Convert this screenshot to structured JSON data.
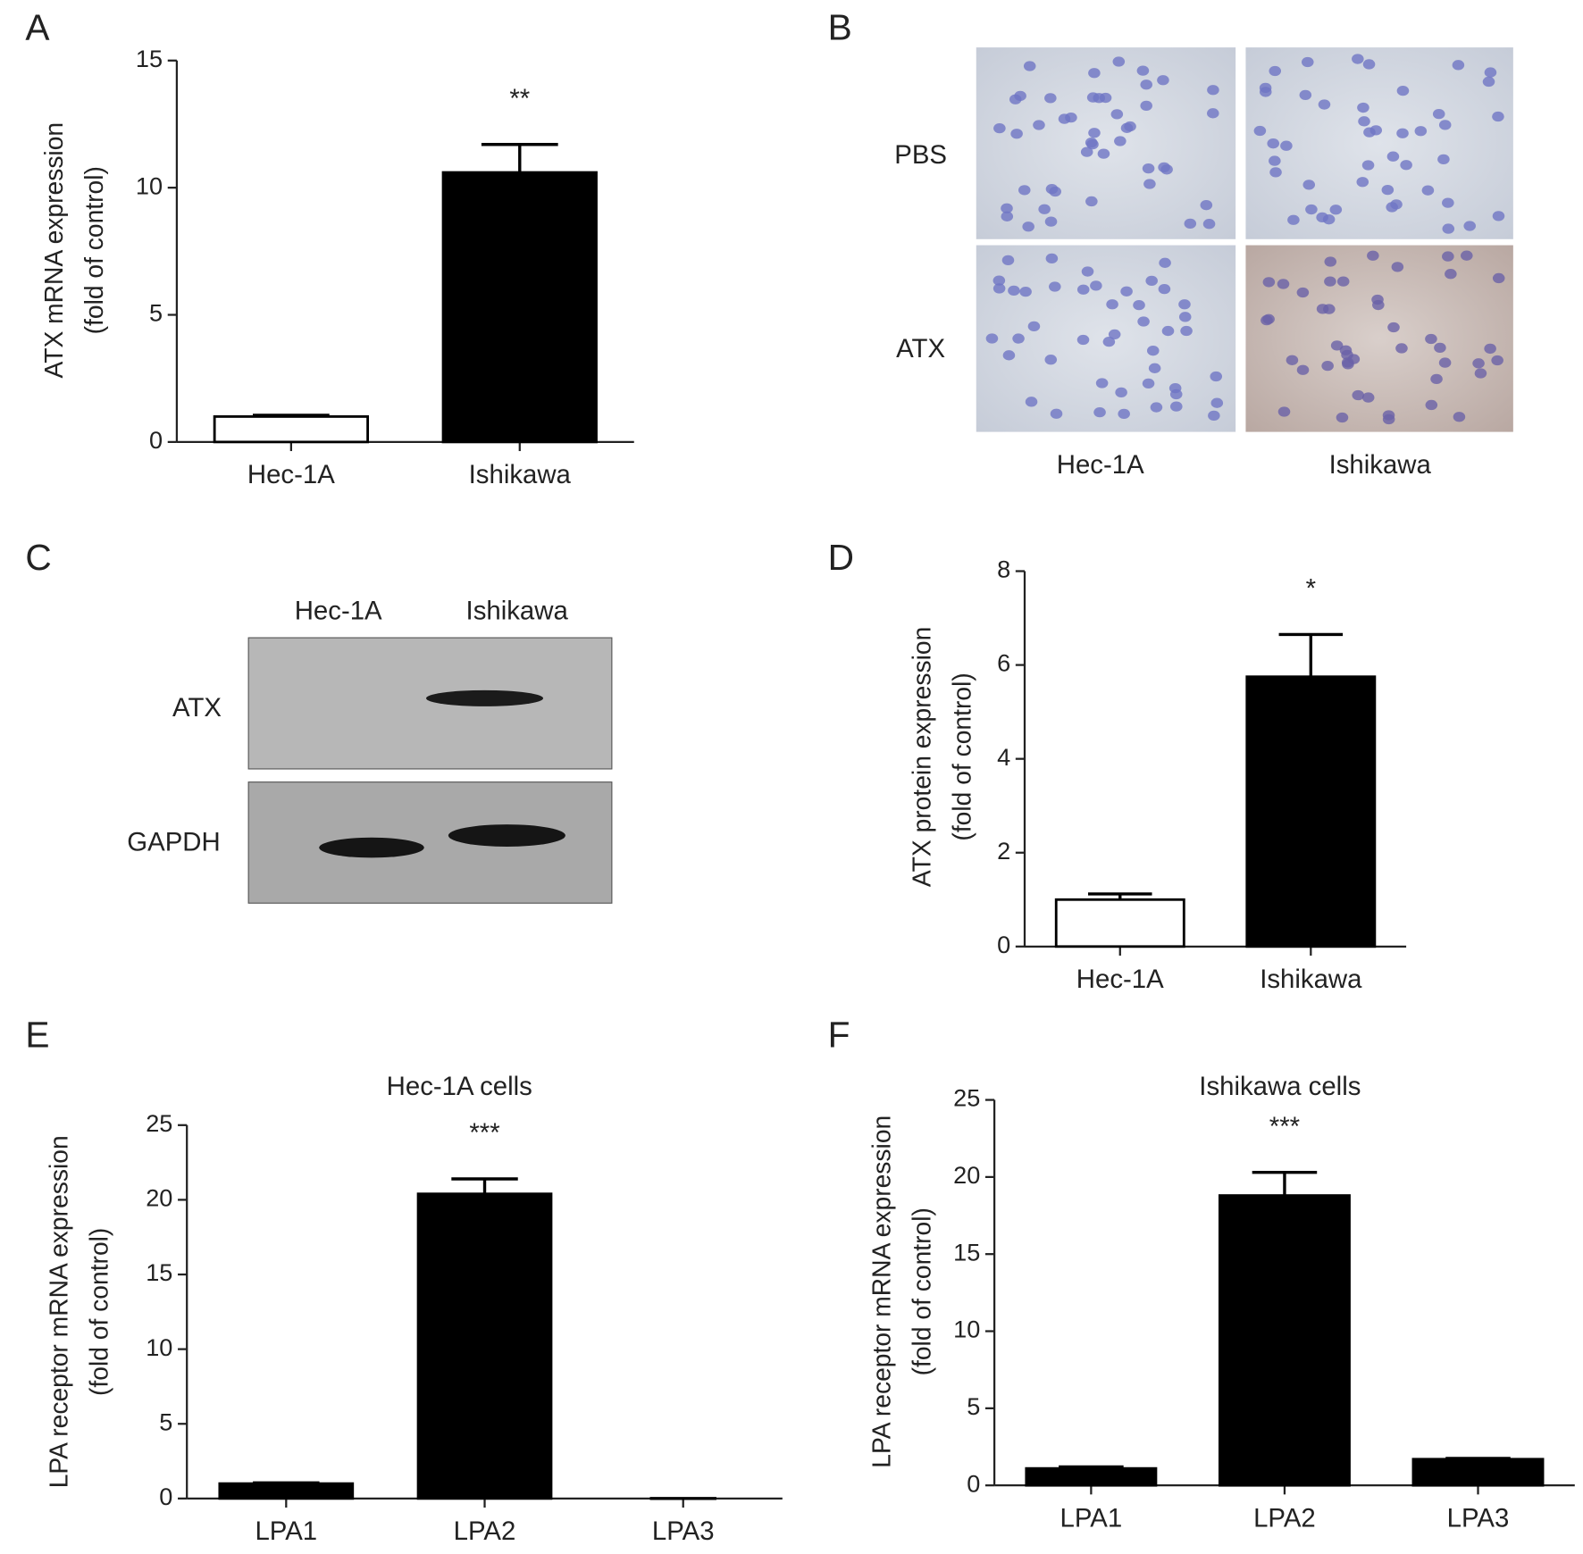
{
  "chart_data": [
    {
      "type": "bar",
      "panel": "A",
      "ylabel": [
        "ATX mRNA expression",
        "(fold of control)"
      ],
      "categories": [
        "Hec-1A",
        "Ishikawa"
      ],
      "values": [
        1.0,
        10.6
      ],
      "errors": [
        0.05,
        1.1
      ],
      "colors": [
        "#ffffff",
        "#000000"
      ],
      "significance": [
        null,
        "**"
      ],
      "ylim": [
        0,
        15
      ],
      "yticks": [
        0,
        5,
        10,
        15
      ]
    },
    {
      "type": "bar",
      "panel": "D",
      "ylabel": [
        "ATX protein expression",
        "(fold of control)"
      ],
      "categories": [
        "Hec-1A",
        "Ishikawa"
      ],
      "values": [
        1.0,
        5.75
      ],
      "errors": [
        0.12,
        0.9
      ],
      "colors": [
        "#ffffff",
        "#000000"
      ],
      "significance": [
        null,
        "*"
      ],
      "ylim": [
        0,
        8
      ],
      "yticks": [
        0,
        2,
        4,
        6,
        8
      ]
    },
    {
      "type": "bar",
      "panel": "E",
      "title": "Hec-1A cells",
      "ylabel": [
        "LPA receptor mRNA expression",
        "(fold of control)"
      ],
      "categories": [
        "LPA1",
        "LPA2",
        "LPA3"
      ],
      "values": [
        1.0,
        20.4,
        0
      ],
      "errors": [
        0.05,
        1.0,
        0
      ],
      "colors": [
        "#000000",
        "#000000",
        "#000000"
      ],
      "significance": [
        null,
        "***",
        null
      ],
      "ylim": [
        0,
        25
      ],
      "yticks": [
        0,
        5,
        10,
        15,
        20,
        25
      ]
    },
    {
      "type": "bar",
      "panel": "F",
      "title": "Ishikawa cells",
      "ylabel": [
        "LPA receptor mRNA expression",
        "(fold of control)"
      ],
      "categories": [
        "LPA1",
        "LPA2",
        "LPA3"
      ],
      "values": [
        1.1,
        18.8,
        1.7
      ],
      "errors": [
        0.1,
        1.5,
        0.05
      ],
      "colors": [
        "#000000",
        "#000000",
        "#000000"
      ],
      "significance": [
        null,
        "***",
        null
      ],
      "ylim": [
        0,
        25
      ],
      "yticks": [
        0,
        5,
        10,
        15,
        20,
        25
      ]
    }
  ],
  "images": [
    {
      "panel": "B",
      "rows": [
        "PBS",
        "ATX"
      ],
      "columns": [
        "Hec-1A",
        "Ishikawa"
      ]
    },
    {
      "panel": "C",
      "lanes": [
        "Hec-1A",
        "Ishikawa"
      ],
      "bands": [
        "ATX",
        "GAPDH"
      ]
    }
  ]
}
